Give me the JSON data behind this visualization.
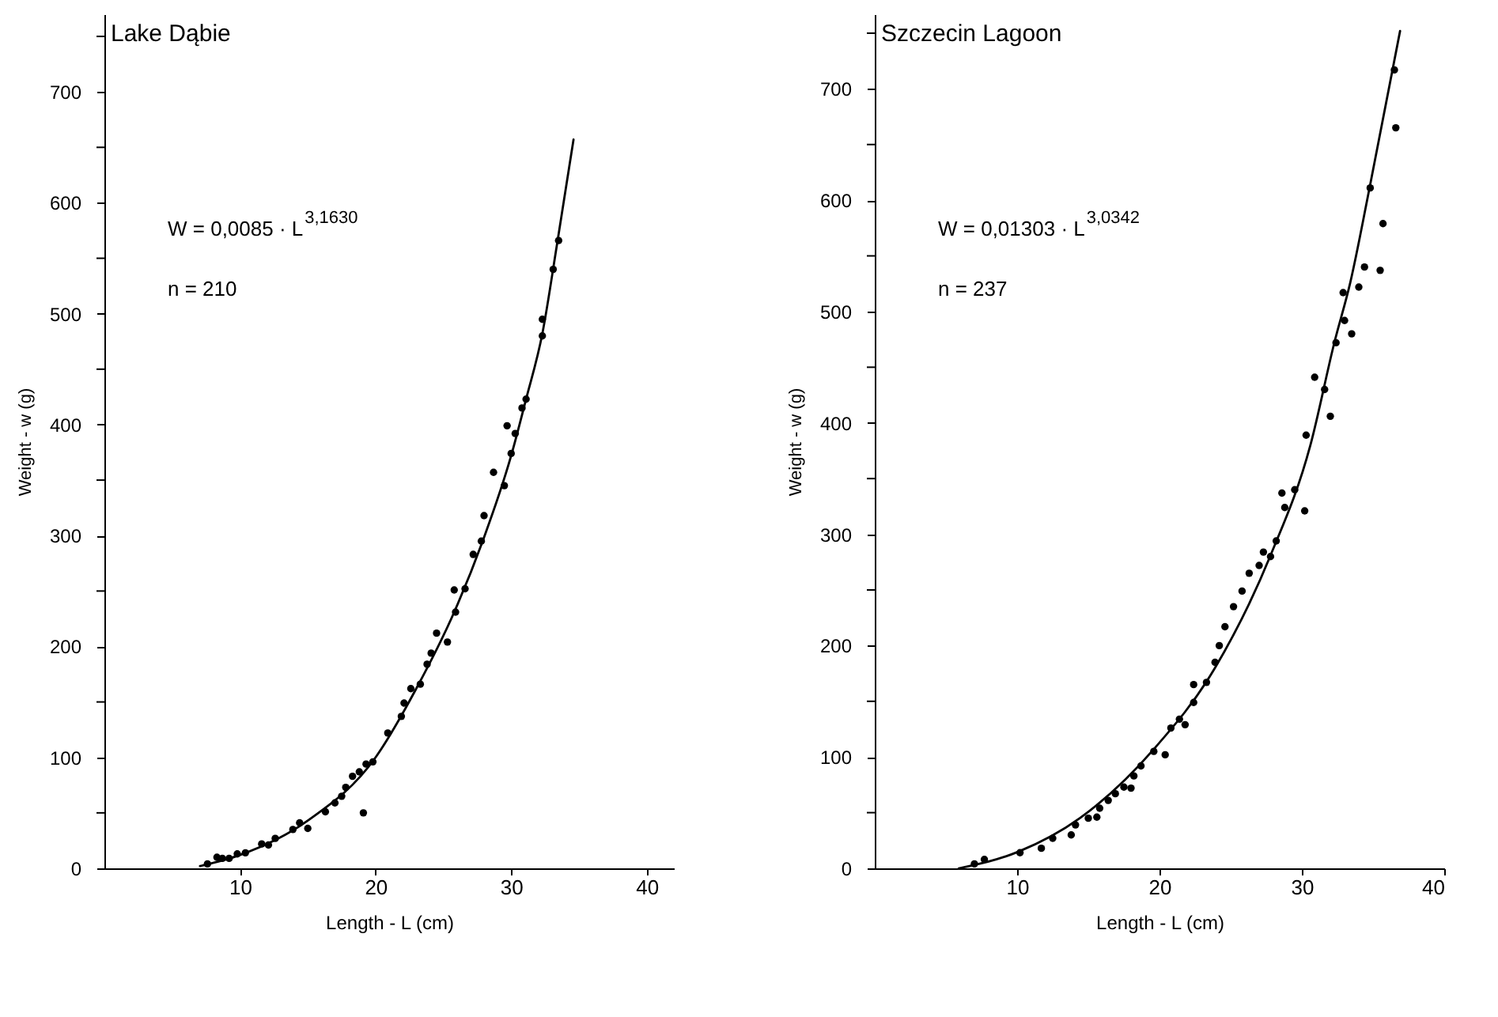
{
  "chart_data": [
    {
      "type": "scatter",
      "title": "Lake Dąbie",
      "xlabel": "Length - L (cm)",
      "ylabel": "Weight - w (g)",
      "xlim": [
        0,
        42
      ],
      "ylim": [
        0,
        770
      ],
      "xticks": [
        10,
        20,
        30,
        40
      ],
      "yticks": [
        0,
        {
          "value": 50,
          "label": null
        },
        100,
        {
          "value": 150,
          "label": null
        },
        200,
        {
          "value": 250,
          "label": null
        },
        300,
        {
          "value": 350,
          "label": null
        },
        400,
        {
          "value": 450,
          "label": null
        },
        500,
        {
          "value": 550,
          "label": null
        },
        600,
        {
          "value": 650,
          "label": null
        },
        700,
        {
          "value": 750,
          "label": null
        }
      ],
      "annotations": [
        "W = 0,0085 · L$^{3,1630}$",
        "n = 210"
      ],
      "series": [
        {
          "type": "scatter",
          "marker": "circle",
          "color": "#000000",
          "x": [
            7.6,
            8.3,
            8.7,
            9.2,
            9.8,
            10.4,
            11.6,
            12.1,
            12.6,
            13.9,
            14.4,
            15.0,
            16.3,
            17.0,
            17.5,
            17.8,
            18.3,
            18.8,
            19.1,
            19.3,
            19.8,
            20.9,
            21.9,
            22.1,
            22.6,
            23.3,
            23.8,
            24.1,
            24.5,
            25.3,
            25.8,
            25.9,
            26.6,
            27.2,
            27.8,
            28.0,
            28.7,
            29.5,
            29.7,
            30.0,
            30.3,
            30.8,
            31.1,
            32.3,
            32.3,
            33.1,
            33.5
          ],
          "values": [
            4,
            10,
            9,
            9,
            13,
            14,
            22,
            21,
            27,
            35,
            41,
            36,
            51,
            59,
            65,
            73,
            83,
            87,
            50,
            94,
            96,
            122,
            137,
            149,
            162,
            166,
            184,
            194,
            212,
            204,
            251,
            231,
            252,
            283,
            295,
            318,
            357,
            345,
            399,
            374,
            392,
            415,
            423,
            480,
            495,
            540,
            566
          ]
        },
        {
          "type": "line",
          "color": "#000000",
          "x": [
            7.05,
            10.0,
            15.0,
            20.0,
            23.0,
            25.8,
            27.9,
            30.0,
            31.1,
            32.3,
            33.4,
            34.6
          ],
          "values": [
            2,
            12,
            43,
            100,
            162,
            231,
            295,
            372,
            423,
            482,
            564,
            657
          ]
        }
      ]
    },
    {
      "type": "scatter",
      "title": "Szczecin Lagoon",
      "xlabel": "Length - L (cm)",
      "ylabel": "Weight - w (g)",
      "xlim": [
        0,
        40
      ],
      "ylim": [
        0,
        767
      ],
      "xticks": [
        10,
        20,
        30,
        40
      ],
      "yticks": [
        0,
        {
          "value": 50,
          "label": null
        },
        100,
        {
          "value": 150,
          "label": null
        },
        200,
        {
          "value": 250,
          "label": null
        },
        300,
        {
          "value": 350,
          "label": null
        },
        400,
        {
          "value": 450,
          "label": null
        },
        500,
        {
          "value": 550,
          "label": null
        },
        600,
        {
          "value": 650,
          "label": null
        },
        700,
        {
          "value": 750,
          "label": null
        }
      ],
      "annotations": [
        "W = 0,01303 · L$^{3,0342}$",
        "n = 237"
      ],
      "series": [
        {
          "type": "scatter",
          "marker": "circle",
          "color": "#000000",
          "x": [
            7.0,
            7.7,
            10.2,
            11.7,
            12.5,
            13.8,
            14.1,
            15.0,
            15.6,
            15.8,
            16.4,
            16.9,
            17.5,
            18.0,
            18.2,
            18.7,
            19.6,
            20.4,
            20.8,
            21.4,
            21.8,
            22.4,
            22.4,
            23.3,
            23.9,
            24.2,
            24.6,
            25.2,
            25.8,
            26.3,
            27.0,
            27.3,
            27.8,
            28.2,
            28.6,
            28.8,
            29.5,
            30.2,
            30.3,
            30.9,
            31.6,
            32.0,
            32.4,
            32.9,
            33.0,
            33.5,
            34.0,
            34.4,
            34.8,
            35.5,
            35.7,
            36.5,
            36.6
          ],
          "values": [
            4,
            8,
            14,
            18,
            27,
            30,
            39,
            45,
            46,
            54,
            61,
            67,
            73,
            72,
            83,
            92,
            105,
            102,
            126,
            134,
            129,
            149,
            165,
            167,
            185,
            200,
            217,
            235,
            249,
            265,
            272,
            284,
            280,
            294,
            337,
            324,
            340,
            321,
            389,
            441,
            430,
            406,
            472,
            517,
            492,
            480,
            522,
            540,
            611,
            537,
            579,
            717,
            665
          ]
        },
        {
          "type": "line",
          "color": "#000000",
          "x": [
            5.9,
            10.1,
            14.4,
            19.6,
            23.9,
            27.8,
            30.6,
            32.3,
            33.4,
            34.8,
            36.9
          ],
          "values": [
            0,
            15,
            45,
            107,
            180,
            281,
            380,
            473,
            526,
            614,
            752
          ]
        }
      ]
    }
  ]
}
